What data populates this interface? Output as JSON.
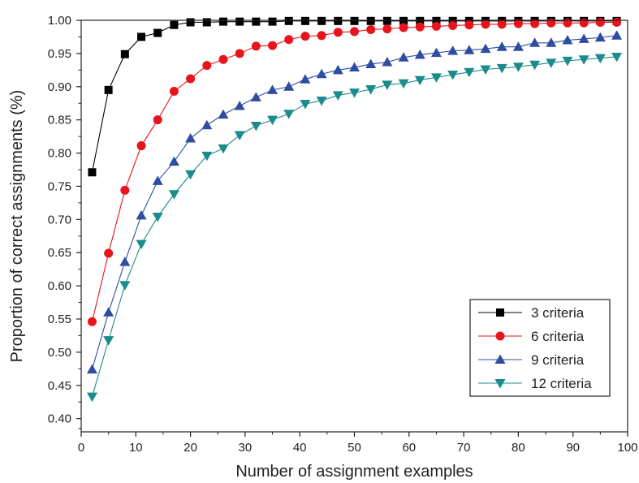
{
  "chart_data": {
    "type": "line",
    "xlabel": "Number of assignment examples",
    "ylabel": "Proportion of correct assignments (%)",
    "xlim": [
      0,
      100
    ],
    "ylim": [
      0.38,
      1.0
    ],
    "xticks": [
      "0",
      "10",
      "20",
      "30",
      "40",
      "50",
      "60",
      "70",
      "80",
      "90",
      "100"
    ],
    "yticks": [
      "0.40",
      "0.45",
      "0.50",
      "0.55",
      "0.60",
      "0.65",
      "0.70",
      "0.75",
      "0.80",
      "0.85",
      "0.90",
      "0.95",
      "1.00"
    ],
    "legend_position": "bottom-right",
    "grid": false,
    "x": [
      2,
      5,
      8,
      11,
      14,
      17,
      20,
      23,
      26,
      29,
      32,
      35,
      38,
      41,
      44,
      47,
      50,
      53,
      56,
      59,
      62,
      65,
      68,
      71,
      74,
      77,
      80,
      83,
      86,
      89,
      92,
      95,
      98
    ],
    "series": [
      {
        "name": "3 criteria",
        "marker": "square",
        "color": "#000000",
        "values": [
          0.771,
          0.895,
          0.949,
          0.975,
          0.981,
          0.993,
          0.997,
          0.997,
          0.998,
          0.998,
          0.998,
          0.998,
          0.999,
          0.999,
          0.999,
          0.999,
          0.999,
          0.999,
          0.999,
          0.999,
          0.999,
          0.999,
          0.999,
          0.999,
          0.999,
          0.999,
          0.999,
          0.999,
          0.999,
          0.999,
          0.999,
          0.999,
          0.999
        ]
      },
      {
        "name": "6 criteria",
        "marker": "circle",
        "color": "#e8141b",
        "values": [
          0.546,
          0.649,
          0.744,
          0.811,
          0.85,
          0.893,
          0.912,
          0.932,
          0.941,
          0.95,
          0.961,
          0.962,
          0.971,
          0.976,
          0.977,
          0.982,
          0.983,
          0.986,
          0.987,
          0.989,
          0.99,
          0.991,
          0.992,
          0.993,
          0.994,
          0.994,
          0.995,
          0.995,
          0.996,
          0.996,
          0.996,
          0.997,
          0.997
        ]
      },
      {
        "name": "9 criteria",
        "marker": "triangle-up",
        "color": "#2e4da0",
        "values": [
          0.474,
          0.56,
          0.636,
          0.706,
          0.758,
          0.787,
          0.822,
          0.842,
          0.858,
          0.871,
          0.884,
          0.895,
          0.9,
          0.911,
          0.919,
          0.925,
          0.929,
          0.934,
          0.937,
          0.944,
          0.948,
          0.951,
          0.954,
          0.955,
          0.957,
          0.96,
          0.96,
          0.966,
          0.966,
          0.97,
          0.972,
          0.974,
          0.977
        ]
      },
      {
        "name": "12 criteria",
        "marker": "triangle-down",
        "color": "#1b8b8b",
        "values": [
          0.433,
          0.518,
          0.601,
          0.663,
          0.704,
          0.738,
          0.768,
          0.796,
          0.807,
          0.827,
          0.841,
          0.85,
          0.859,
          0.874,
          0.879,
          0.887,
          0.891,
          0.896,
          0.903,
          0.905,
          0.91,
          0.914,
          0.918,
          0.922,
          0.926,
          0.928,
          0.93,
          0.933,
          0.936,
          0.939,
          0.941,
          0.943,
          0.945
        ]
      }
    ]
  }
}
